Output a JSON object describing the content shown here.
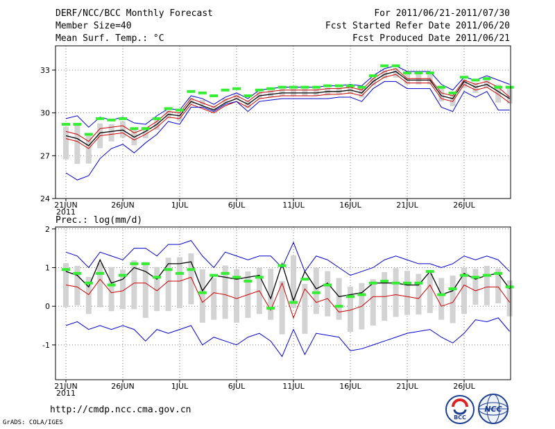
{
  "header": {
    "title": "DERF/NCC/BCC Monthly Forecast",
    "member_size": "Member Size=40",
    "variable_top": "Mean Surf. Temp.: °C",
    "period": "For 2011/06/21-2011/07/30",
    "started": "Fcst Started Refer Date 2011/06/20",
    "produced": "Fcst Produced Date 2011/06/21"
  },
  "footer": {
    "url": "http://cmdp.ncc.cma.gov.cn",
    "grads": "GrADS: COLA/IGES",
    "logo_bcc": "BCC",
    "logo_ncc": "NCC"
  },
  "colors": {
    "grid": "#777777",
    "bar": "#d3d3d3",
    "green": "#33ee33",
    "blue": "#0000cc",
    "red": "#cc0000",
    "black": "#000000"
  },
  "chart_data": [
    {
      "type": "line",
      "title": "Mean Surf. Temp.: °C",
      "ylim": [
        24,
        34.7
      ],
      "yticks": [
        24,
        27,
        30,
        33
      ],
      "xticks": [
        {
          "day": 0,
          "label": "21JUN",
          "sub": "2011"
        },
        {
          "day": 5,
          "label": "26JUN"
        },
        {
          "day": 10,
          "label": "1JUL"
        },
        {
          "day": 15,
          "label": "6JUL"
        },
        {
          "day": 20,
          "label": "11JUL"
        },
        {
          "day": 25,
          "label": "16JUL"
        },
        {
          "day": 30,
          "label": "21JUL"
        },
        {
          "day": 35,
          "label": "26JUL"
        }
      ],
      "days": 40,
      "series": [
        {
          "name": "max",
          "color": "blue",
          "values": [
            29.6,
            29.8,
            29.0,
            29.7,
            29.5,
            29.7,
            29.3,
            29.2,
            29.8,
            30.3,
            30.2,
            31.2,
            31.0,
            30.6,
            31.1,
            31.4,
            31.0,
            31.6,
            31.7,
            31.8,
            31.8,
            31.8,
            31.8,
            31.9,
            31.9,
            32.0,
            31.9,
            32.6,
            33.1,
            33.3,
            32.9,
            32.9,
            32.9,
            32.0,
            31.6,
            32.5,
            32.3,
            32.6,
            32.3,
            32.0
          ]
        },
        {
          "name": "upper",
          "color": "red",
          "values": [
            28.7,
            28.5,
            28.0,
            28.9,
            29.0,
            29.1,
            28.6,
            28.9,
            29.4,
            30.1,
            30.0,
            31.0,
            30.7,
            30.4,
            30.9,
            31.2,
            30.8,
            31.4,
            31.5,
            31.6,
            31.6,
            31.6,
            31.6,
            31.7,
            31.7,
            31.8,
            31.6,
            32.4,
            32.9,
            33.1,
            32.4,
            32.4,
            32.4,
            31.4,
            31.2,
            32.3,
            32.0,
            32.2,
            31.8,
            31.1
          ]
        },
        {
          "name": "mean",
          "color": "black",
          "values": [
            28.4,
            28.2,
            27.7,
            28.6,
            28.7,
            28.8,
            28.3,
            28.7,
            29.2,
            29.9,
            29.8,
            30.8,
            30.5,
            30.2,
            30.7,
            31.0,
            30.6,
            31.2,
            31.3,
            31.4,
            31.4,
            31.4,
            31.4,
            31.5,
            31.5,
            31.6,
            31.4,
            32.2,
            32.7,
            32.9,
            32.3,
            32.3,
            32.3,
            31.2,
            31.0,
            32.2,
            31.8,
            32.0,
            31.5,
            31.0
          ]
        },
        {
          "name": "lower",
          "color": "red",
          "values": [
            28.2,
            28.0,
            27.5,
            28.4,
            28.5,
            28.6,
            28.1,
            28.5,
            29.0,
            29.7,
            29.6,
            30.6,
            30.3,
            30.0,
            30.5,
            30.8,
            30.4,
            31.0,
            31.1,
            31.2,
            31.2,
            31.2,
            31.2,
            31.3,
            31.3,
            31.4,
            31.2,
            32.0,
            32.5,
            32.7,
            32.1,
            32.1,
            32.1,
            31.0,
            30.8,
            32.0,
            31.6,
            31.8,
            31.3,
            30.7
          ]
        },
        {
          "name": "min",
          "color": "blue",
          "values": [
            25.8,
            25.3,
            25.6,
            26.8,
            27.5,
            27.8,
            27.2,
            27.9,
            28.5,
            29.4,
            29.2,
            30.4,
            30.4,
            30.1,
            30.6,
            30.8,
            30.1,
            30.8,
            30.9,
            31.0,
            31.0,
            31.0,
            31.0,
            31.0,
            31.1,
            31.1,
            30.8,
            31.7,
            32.2,
            32.2,
            31.7,
            31.7,
            31.7,
            30.4,
            30.1,
            31.5,
            31.1,
            31.5,
            30.2,
            30.2
          ]
        }
      ],
      "observed": [
        29.2,
        29.2,
        28.5,
        29.6,
        29.5,
        29.6,
        28.9,
        28.9,
        29.6,
        30.3,
        30.2,
        31.5,
        31.4,
        31.2,
        31.6,
        31.7,
        31.2,
        31.6,
        31.7,
        31.8,
        31.8,
        31.8,
        31.8,
        31.9,
        31.9,
        31.9,
        31.8,
        32.6,
        33.3,
        33.3,
        32.8,
        32.8,
        32.8,
        31.8,
        31.4,
        32.5,
        32.3,
        32.4,
        31.8,
        31.8
      ]
    },
    {
      "type": "line",
      "title": "Prec.: log(mm/d)",
      "ylim": [
        -1.9,
        2.05
      ],
      "yticks": [
        -1,
        0,
        1,
        2
      ],
      "xticks": [
        {
          "day": 0,
          "label": "21JUN",
          "sub": "2011"
        },
        {
          "day": 5,
          "label": "26JUN"
        },
        {
          "day": 10,
          "label": "1JUL"
        },
        {
          "day": 15,
          "label": "6JUL"
        },
        {
          "day": 20,
          "label": "11JUL"
        },
        {
          "day": 25,
          "label": "16JUL"
        },
        {
          "day": 30,
          "label": "21JUL"
        },
        {
          "day": 35,
          "label": "26JUL"
        }
      ],
      "days": 40,
      "series": [
        {
          "name": "max",
          "color": "blue",
          "values": [
            1.4,
            1.3,
            1.0,
            1.4,
            1.3,
            1.2,
            1.5,
            1.5,
            1.3,
            1.6,
            1.6,
            1.7,
            1.3,
            1.0,
            1.4,
            1.3,
            1.2,
            1.3,
            1.3,
            1.0,
            1.65,
            0.9,
            1.3,
            1.2,
            1.0,
            0.8,
            0.9,
            1.0,
            1.2,
            1.3,
            1.2,
            1.1,
            1.1,
            1.0,
            1.1,
            1.3,
            1.2,
            1.3,
            1.2,
            0.9
          ]
        },
        {
          "name": "mean",
          "color": "black",
          "values": [
            0.9,
            0.8,
            0.5,
            1.2,
            0.6,
            0.7,
            1.0,
            0.9,
            0.7,
            1.1,
            1.1,
            1.15,
            0.4,
            0.8,
            0.75,
            0.7,
            0.75,
            0.8,
            0.2,
            1.1,
            0.15,
            0.9,
            0.45,
            0.6,
            0.25,
            0.3,
            0.35,
            0.6,
            0.6,
            0.6,
            0.55,
            0.55,
            0.9,
            0.3,
            0.4,
            0.85,
            0.7,
            0.8,
            0.85,
            0.45
          ]
        },
        {
          "name": "lower",
          "color": "red",
          "values": [
            0.55,
            0.5,
            0.3,
            0.7,
            0.35,
            0.4,
            0.6,
            0.6,
            0.4,
            0.65,
            0.65,
            0.75,
            0.1,
            0.35,
            0.3,
            0.2,
            0.3,
            0.4,
            -0.1,
            0.6,
            -0.3,
            0.45,
            0.1,
            0.2,
            -0.15,
            -0.1,
            0.0,
            0.25,
            0.25,
            0.3,
            0.25,
            0.2,
            0.55,
            0.0,
            0.1,
            0.55,
            0.4,
            0.5,
            0.5,
            0.1
          ]
        },
        {
          "name": "min",
          "color": "blue",
          "values": [
            -0.5,
            -0.4,
            -0.6,
            -0.5,
            -0.6,
            -0.5,
            -0.6,
            -0.9,
            -0.6,
            -0.7,
            -0.6,
            -0.5,
            -1.0,
            -0.8,
            -0.9,
            -1.0,
            -0.8,
            -0.7,
            -0.9,
            -1.3,
            -0.6,
            -1.25,
            -0.7,
            -0.75,
            -0.8,
            -1.15,
            -1.1,
            -1.0,
            -0.9,
            -0.8,
            -0.7,
            -0.65,
            -0.6,
            -0.8,
            -0.95,
            -0.7,
            -0.35,
            -0.4,
            -0.3,
            -0.65
          ]
        }
      ],
      "observed": [
        0.95,
        0.85,
        0.6,
        0.85,
        0.55,
        0.8,
        1.1,
        1.1,
        0.75,
        0.95,
        0.85,
        0.95,
        0.35,
        0.8,
        0.85,
        0.75,
        0.65,
        0.75,
        -0.05,
        1.05,
        0.1,
        0.7,
        0.35,
        0.55,
        0.0,
        0.25,
        0.3,
        0.6,
        0.65,
        0.6,
        0.6,
        0.6,
        0.9,
        0.3,
        0.45,
        0.8,
        0.75,
        0.8,
        0.85,
        0.5
      ]
    }
  ]
}
